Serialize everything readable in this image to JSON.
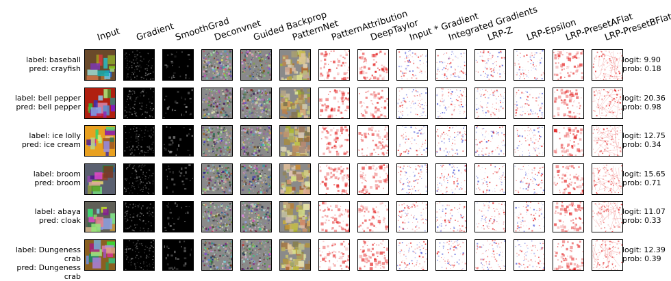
{
  "methods": [
    "Input",
    "Gradient",
    "SmoothGrad",
    "Deconvnet",
    "Guided Backprop",
    "PatternNet",
    "PatternAttribution",
    "DeepTaylor",
    "Input * Gradient",
    "Integrated Gradients",
    "LRP-Z",
    "LRP-Epsilon",
    "LRP-PresetAFlat",
    "LRP-PresetBFlat"
  ],
  "rows": [
    {
      "label": "label: baseball",
      "pred": "pred: crayfish",
      "logit": "logit: 9.90",
      "prob": "prob: 0.18"
    },
    {
      "label": "label: bell pepper",
      "pred": "pred: bell pepper",
      "logit": "logit: 20.36",
      "prob": "prob: 0.98"
    },
    {
      "label": "label: ice lolly",
      "pred": "pred: ice cream",
      "logit": "logit: 12.75",
      "prob": "prob: 0.34"
    },
    {
      "label": "label: broom",
      "pred": "pred: broom",
      "logit": "logit: 15.65",
      "prob": "prob: 0.71"
    },
    {
      "label": "label: abaya",
      "pred": "pred: cloak",
      "logit": "logit: 11.07",
      "prob": "prob: 0.33"
    },
    {
      "label": "label: Dungeness crab",
      "pred": "pred: Dungeness crab",
      "logit": "logit: 12.39",
      "prob": "prob: 0.39"
    }
  ],
  "colors": {
    "positive": "#e00000",
    "negative": "#2030d0",
    "gray_noise": "#8a8a8a",
    "black_bg": "#000000",
    "white_bg": "#ffffff"
  },
  "input_colors": [
    "#6a4a2a",
    "#b02010",
    "#e8a020",
    "#5a6070",
    "#606058",
    "#8a6020"
  ]
}
